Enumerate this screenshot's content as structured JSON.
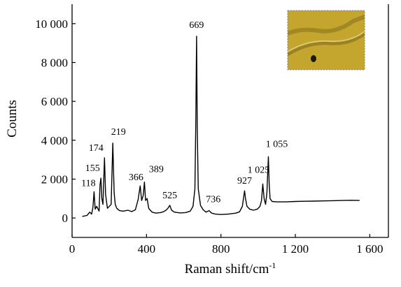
{
  "chart_data": {
    "type": "line",
    "title": "",
    "xlabel": "Raman shift/cm",
    "xlabel_superscript": "-1",
    "ylabel": "Counts",
    "xlim": [
      0,
      1700
    ],
    "ylim": [
      -1000,
      11000
    ],
    "x_ticks": [
      {
        "value": 0,
        "label": "0"
      },
      {
        "value": 400,
        "label": "400"
      },
      {
        "value": 800,
        "label": "800"
      },
      {
        "value": 1200,
        "label": "1 200"
      },
      {
        "value": 1600,
        "label": "1 600"
      }
    ],
    "y_ticks": [
      {
        "value": 0,
        "label": "0"
      },
      {
        "value": 2000,
        "label": "2 000"
      },
      {
        "value": 4000,
        "label": "4 000"
      },
      {
        "value": 6000,
        "label": "6 000"
      },
      {
        "value": 8000,
        "label": "8 000"
      },
      {
        "value": 10000,
        "label": "10 000"
      }
    ],
    "grid": false,
    "line_color": "#000000",
    "series": [
      {
        "x": [
          55,
          80,
          95,
          105,
          112,
          118,
          124,
          132,
          145,
          150,
          155,
          160,
          166,
          174,
          180,
          190,
          210,
          219,
          226,
          232,
          240,
          255,
          275,
          300,
          320,
          340,
          355,
          366,
          374,
          382,
          389,
          395,
          403,
          412,
          420,
          430,
          450,
          475,
          490,
          505,
          515,
          525,
          535,
          550,
          580,
          610,
          635,
          650,
          660,
          665,
          669,
          673,
          678,
          690,
          705,
          720,
          736,
          750,
          770,
          800,
          840,
          880,
          900,
          915,
          922,
          927,
          932,
          940,
          955,
          975,
          995,
          1010,
          1018,
          1025,
          1032,
          1040,
          1047,
          1051,
          1055,
          1059,
          1064,
          1075,
          1100,
          1150,
          1200,
          1250,
          1300,
          1350,
          1400,
          1450,
          1500,
          1545
        ],
        "y": [
          80,
          130,
          300,
          200,
          550,
          1350,
          450,
          600,
          350,
          1700,
          2050,
          1000,
          700,
          3100,
          1200,
          500,
          700,
          3850,
          1300,
          700,
          500,
          380,
          350,
          400,
          330,
          420,
          950,
          1650,
          900,
          1150,
          1850,
          900,
          1000,
          500,
          400,
          300,
          250,
          280,
          320,
          400,
          500,
          650,
          400,
          300,
          260,
          280,
          350,
          600,
          1500,
          5000,
          9350,
          4500,
          1500,
          650,
          420,
          300,
          380,
          250,
          200,
          180,
          200,
          250,
          320,
          600,
          1050,
          1400,
          1000,
          600,
          450,
          400,
          450,
          600,
          900,
          1750,
          1000,
          700,
          1300,
          2200,
          3150,
          1800,
          1000,
          850,
          830,
          830,
          850,
          860,
          870,
          880,
          890,
          900,
          910,
          900
        ]
      }
    ],
    "annotations": [
      {
        "label": "118",
        "x": 118,
        "y": 1350
      },
      {
        "label": "155",
        "x": 155,
        "y": 2050
      },
      {
        "label": "174",
        "x": 174,
        "y": 3100
      },
      {
        "label": "219",
        "x": 219,
        "y": 3850
      },
      {
        "label": "366",
        "x": 366,
        "y": 1650
      },
      {
        "label": "389",
        "x": 389,
        "y": 1850
      },
      {
        "label": "525",
        "x": 525,
        "y": 650
      },
      {
        "label": "669",
        "x": 669,
        "y": 9350
      },
      {
        "label": "736",
        "x": 736,
        "y": 380
      },
      {
        "label": "927",
        "x": 927,
        "y": 1400
      },
      {
        "label": "1 025",
        "x": 1025,
        "y": 1750
      },
      {
        "label": "1 055",
        "x": 1055,
        "y": 3150
      }
    ],
    "inset_image": {
      "name": "microscope-photo",
      "colors": {
        "background": "#c4a62e",
        "dark": "#8a7420",
        "light": "#e0cf78",
        "spot": "#1a1a10"
      }
    }
  }
}
